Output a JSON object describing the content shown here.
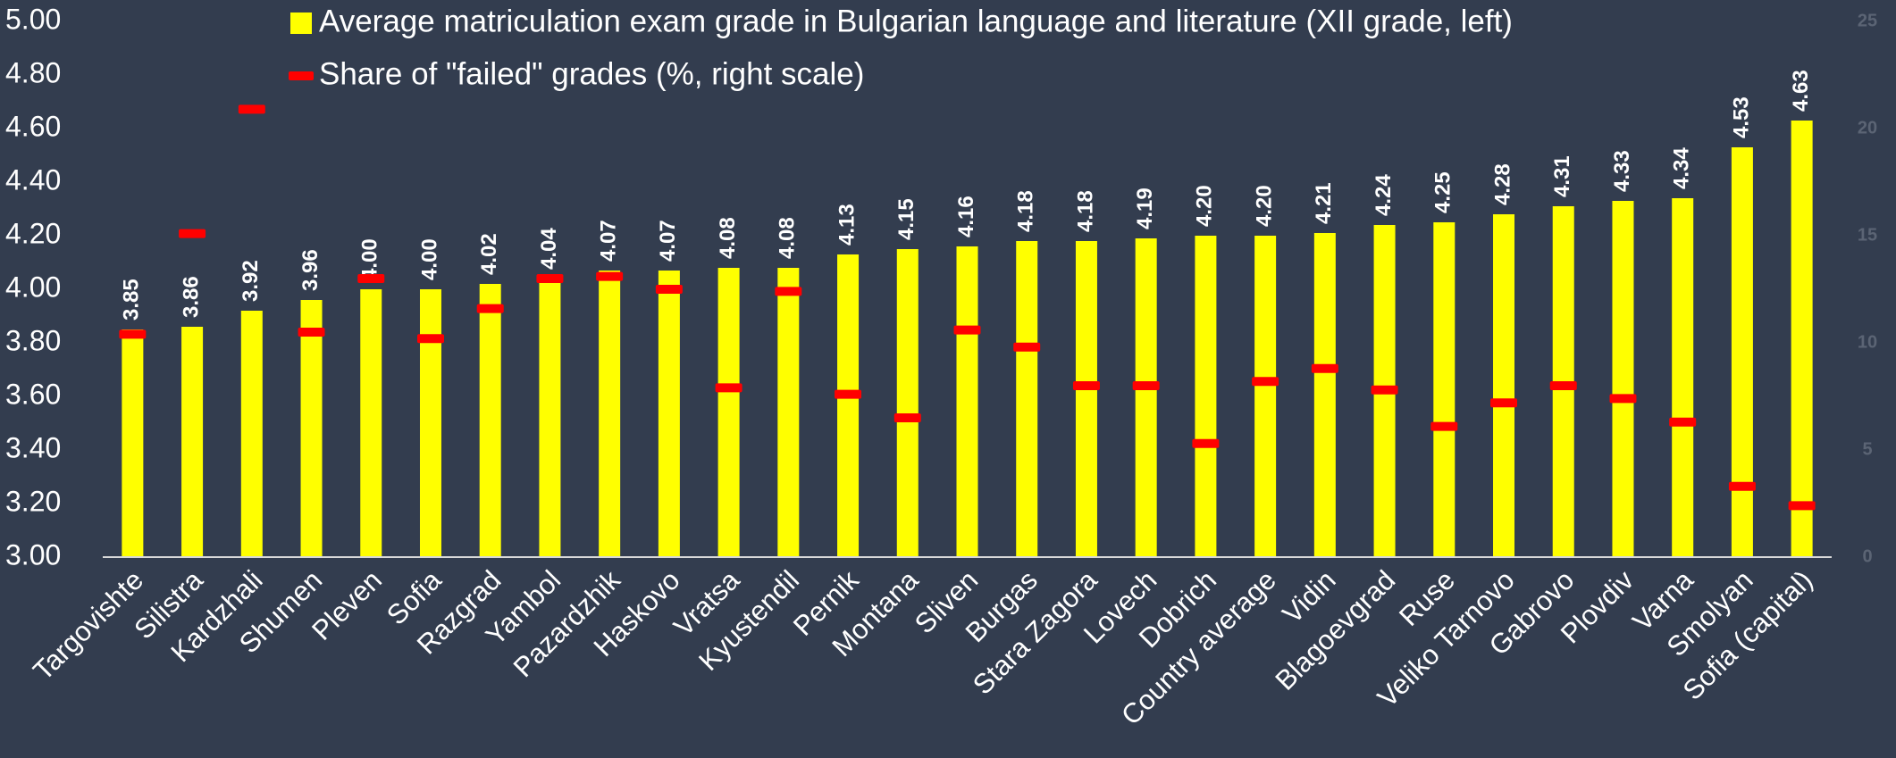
{
  "chart_data": {
    "type": "bar",
    "categories": [
      "Targovishte",
      "Silistra",
      "Kardzhali",
      "Shumen",
      "Pleven",
      "Sofia",
      "Razgrad",
      "Yambol",
      "Pazardzhik",
      "Haskovo",
      "Vratsa",
      "Kyustendil",
      "Pernik",
      "Montana",
      "Sliven",
      "Burgas",
      "Stara Zagora",
      "Lovech",
      "Dobrich",
      "Country average",
      "Vidin",
      "Blagoevgrad",
      "Ruse",
      "Veliko Tarnovo",
      "Gabrovo",
      "Plovdiv",
      "Varna",
      "Smolyan",
      "Sofia (capital)"
    ],
    "series": [
      {
        "name": "Average matriculation exam grade in Bulgarian language and literature (XII grade, left)",
        "type": "bar",
        "color": "#ffff00",
        "values": [
          3.85,
          3.86,
          3.92,
          3.96,
          4.0,
          4.0,
          4.02,
          4.04,
          4.07,
          4.07,
          4.08,
          4.08,
          4.13,
          4.15,
          4.16,
          4.18,
          4.18,
          4.19,
          4.2,
          4.2,
          4.21,
          4.24,
          4.25,
          4.28,
          4.31,
          4.33,
          4.34,
          4.53,
          4.63
        ],
        "value_labels": [
          "3.85",
          "3.86",
          "3.92",
          "3.96",
          "4.00",
          "4.00",
          "4.02",
          "4.04",
          "4.07",
          "4.07",
          "4.08",
          "4.08",
          "4.13",
          "4.15",
          "4.16",
          "4.18",
          "4.18",
          "4.19",
          "4.20",
          "4.20",
          "4.21",
          "4.24",
          "4.25",
          "4.28",
          "4.31",
          "4.33",
          "4.34",
          "4.53",
          "4.63"
        ]
      },
      {
        "name": "Share of \"failed\" grades (%, right scale)",
        "type": "marker",
        "color": "#ff0000",
        "axis": "y2",
        "values": [
          10.4,
          15.1,
          20.9,
          10.5,
          13.0,
          10.2,
          11.6,
          13.0,
          13.1,
          12.5,
          7.9,
          12.4,
          7.6,
          6.5,
          10.6,
          9.8,
          8.0,
          8.0,
          5.3,
          8.2,
          8.8,
          7.8,
          6.1,
          7.2,
          8.0,
          7.4,
          6.3,
          3.3,
          2.4
        ]
      }
    ],
    "ylim": [
      3,
      5
    ],
    "yticks": [
      {
        "value": 3,
        "label": "3.00"
      },
      {
        "value": 3.2,
        "label": "3.20"
      },
      {
        "value": 3.4,
        "label": "3.40"
      },
      {
        "value": 3.6,
        "label": "3.60"
      },
      {
        "value": 3.8,
        "label": "3.80"
      },
      {
        "value": 4,
        "label": "4.00"
      },
      {
        "value": 4.2,
        "label": "4.20"
      },
      {
        "value": 4.4,
        "label": "4.40"
      },
      {
        "value": 4.6,
        "label": "4.60"
      },
      {
        "value": 4.8,
        "label": "4.80"
      },
      {
        "value": 5,
        "label": "5.00"
      }
    ],
    "y2lim": [
      0,
      25
    ],
    "y2ticks": [
      0,
      5,
      10,
      15,
      20,
      25
    ],
    "grid": false,
    "legend": "top"
  }
}
